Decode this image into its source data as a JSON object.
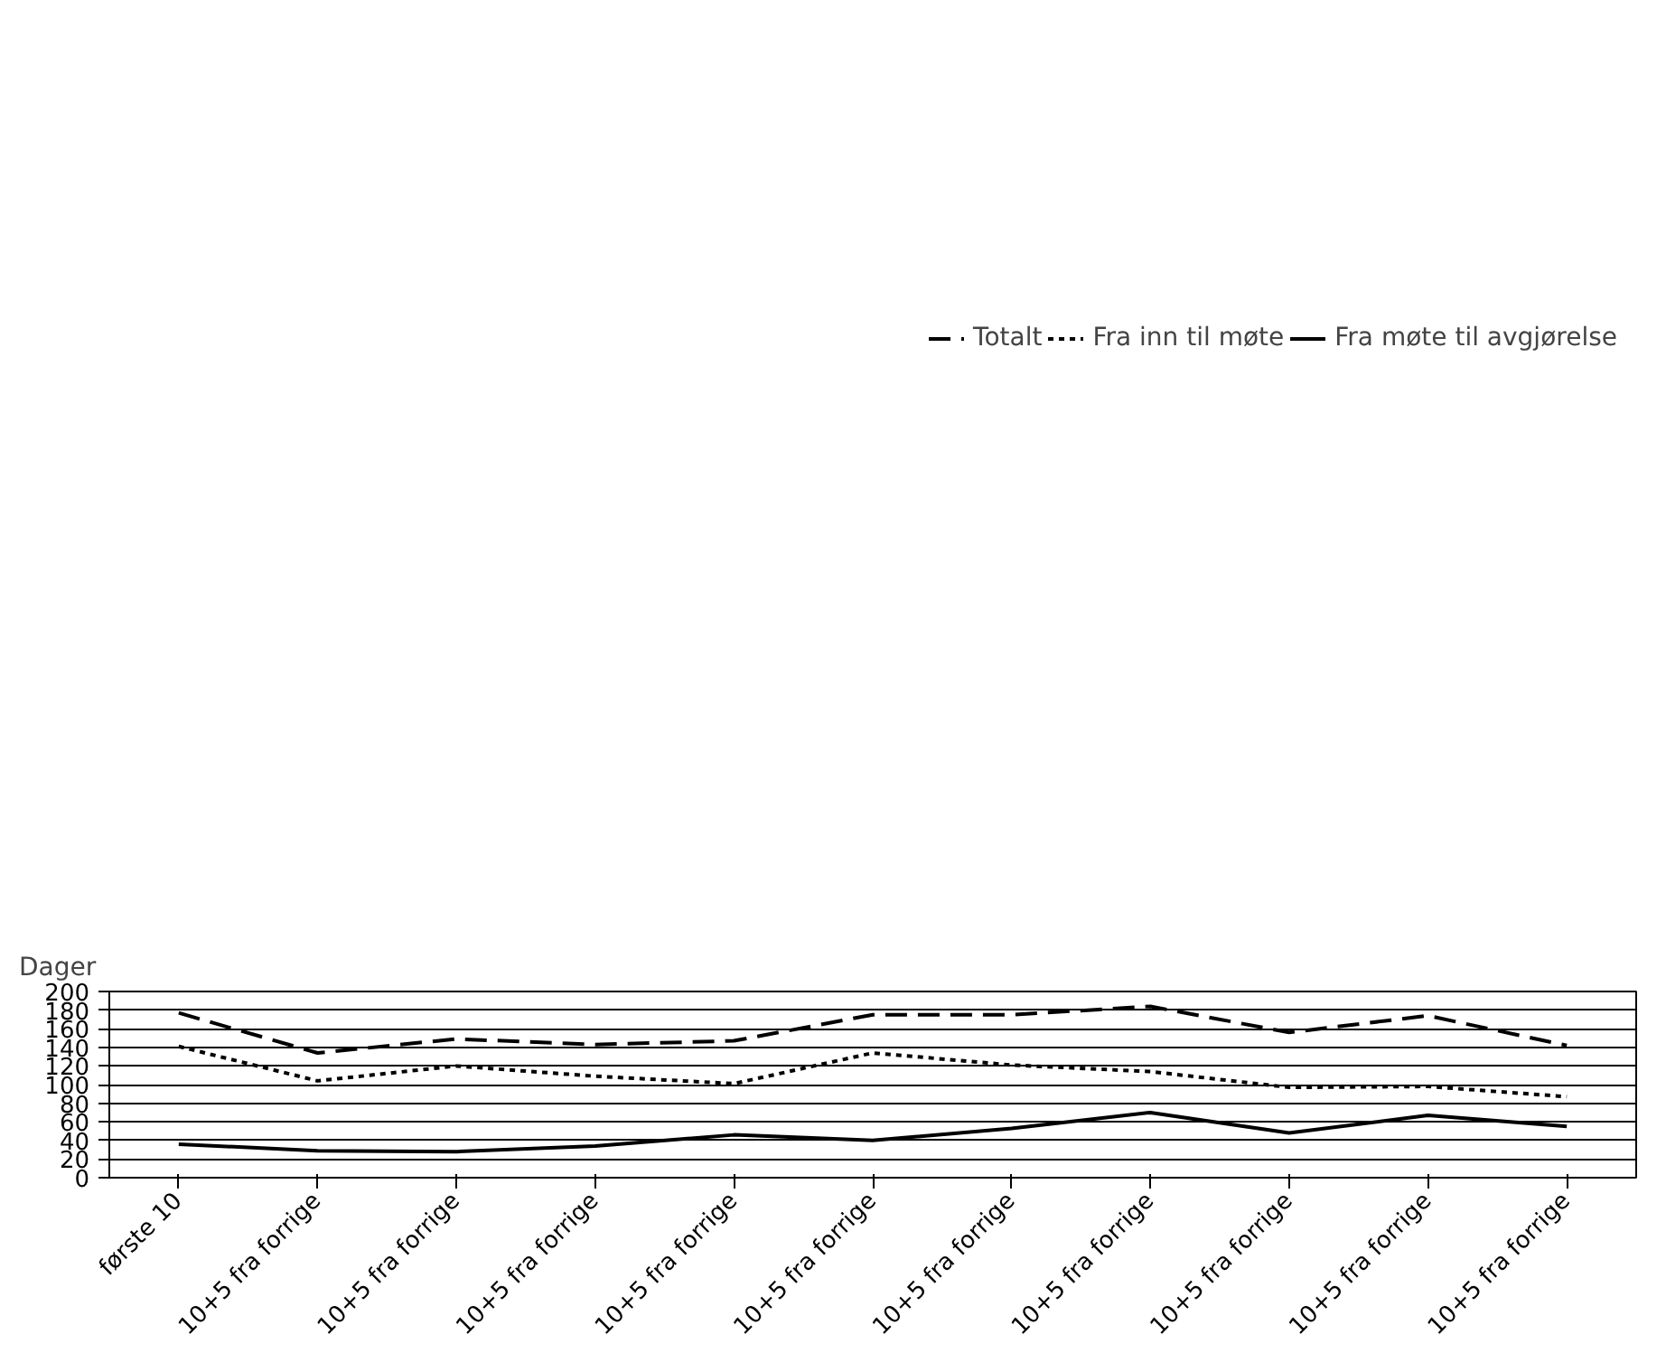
{
  "chart_data": {
    "type": "line",
    "ylabel": "Dager",
    "categories": [
      "første 10",
      "10+5 fra forrige",
      "10+5 fra forrige",
      "10+5 fra forrige",
      "10+5 fra forrige",
      "10+5 fra forrige",
      "10+5 fra forrige",
      "10+5 fra forrige",
      "10+5 fra forrige",
      "10+5 fra forrige",
      "10+5 fra forrige"
    ],
    "series": [
      {
        "name": "Totalt",
        "color": "#000000",
        "line_style": "dashed",
        "values": [
          177,
          134,
          149,
          143,
          147,
          175,
          175,
          184,
          156,
          174,
          142
        ]
      },
      {
        "name": "Fra inn til møte",
        "color": "#000000",
        "line_style": "dotted",
        "values": [
          141,
          104,
          120,
          109,
          101,
          134,
          121,
          114,
          97,
          98,
          87
        ]
      },
      {
        "name": "Fra møte til avgjørelse",
        "color": "#000000",
        "line_style": "solid",
        "values": [
          36,
          29,
          28,
          34,
          46,
          40,
          53,
          70,
          48,
          67,
          55
        ]
      }
    ],
    "ylim": [
      0,
      200
    ],
    "yticks": [
      0,
      20,
      40,
      60,
      80,
      100,
      120,
      140,
      160,
      180,
      200
    ],
    "grid": "y",
    "legend": "top",
    "marker": "none"
  }
}
